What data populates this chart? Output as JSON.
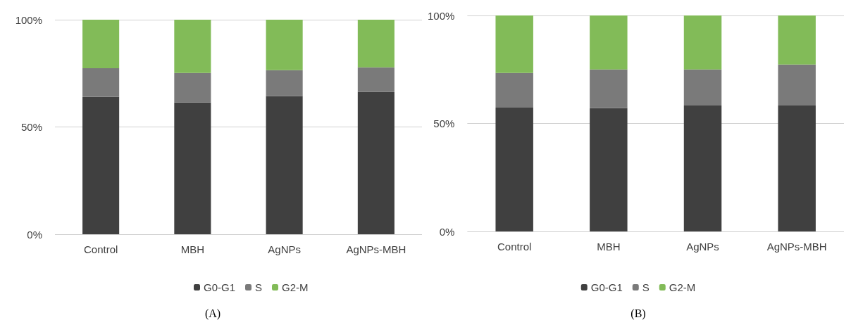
{
  "chart_data": [
    {
      "type": "bar",
      "title": "(A)",
      "stacked": true,
      "categories": [
        "Control",
        "MBH",
        "AgNPs",
        "AgNPs-MBH"
      ],
      "series": [
        {
          "name": "G0-G1",
          "color": "#404040",
          "values": [
            64.0,
            61.4,
            64.4,
            66.4
          ]
        },
        {
          "name": "S",
          "color": "#7a7a7a",
          "values": [
            13.4,
            13.8,
            12.1,
            11.4
          ]
        },
        {
          "name": "G2-M",
          "color": "#82bb58",
          "values": [
            22.6,
            24.8,
            23.5,
            22.2
          ]
        }
      ],
      "ylim": [
        0,
        100
      ],
      "yticks": [
        {
          "value": 0,
          "label": "0%"
        },
        {
          "value": 50,
          "label": "50%"
        },
        {
          "value": 100,
          "label": "100%"
        }
      ],
      "grid": "y",
      "legend": "bottom"
    },
    {
      "type": "bar",
      "title": "(B)",
      "stacked": true,
      "categories": [
        "Control",
        "MBH",
        "AgNPs",
        "AgNPs-MBH"
      ],
      "series": [
        {
          "name": "G0-G1",
          "color": "#404040",
          "values": [
            57.3,
            57.1,
            58.3,
            58.3
          ]
        },
        {
          "name": "S",
          "color": "#7a7a7a",
          "values": [
            16.1,
            17.9,
            16.7,
            19.0
          ]
        },
        {
          "name": "G2-M",
          "color": "#82bb58",
          "values": [
            26.6,
            25.0,
            25.0,
            22.7
          ]
        }
      ],
      "ylim": [
        0,
        100
      ],
      "yticks": [
        {
          "value": 0,
          "label": "0%"
        },
        {
          "value": 50,
          "label": "50%"
        },
        {
          "value": 100,
          "label": "100%"
        }
      ],
      "grid": "y",
      "legend": "bottom"
    }
  ]
}
